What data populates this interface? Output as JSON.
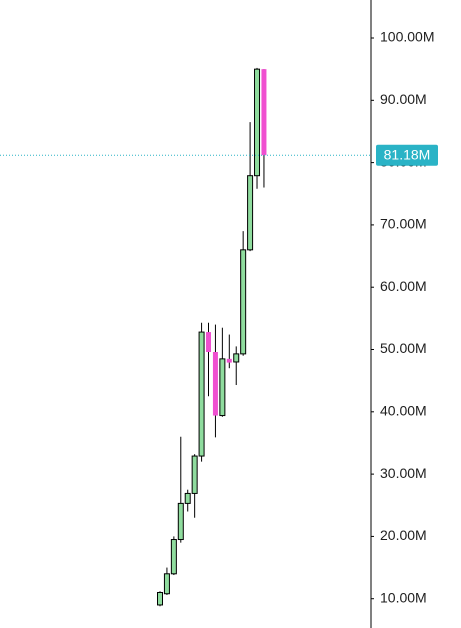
{
  "chart_data": {
    "type": "candlestick",
    "categories": [
      null,
      null,
      null,
      null,
      null,
      null,
      null,
      null,
      null,
      null,
      null,
      null,
      null,
      null,
      null,
      null
    ],
    "open": [
      9.0,
      10.8,
      14.0,
      19.5,
      25.3,
      26.9,
      32.9,
      52.8,
      49.6,
      39.4,
      48.5,
      48.0,
      49.3,
      66.0,
      77.9,
      95.0
    ],
    "high": [
      11.2,
      15.0,
      20.0,
      36.0,
      27.5,
      33.2,
      54.3,
      54.3,
      54.0,
      53.5,
      52.4,
      50.5,
      69.0,
      86.5,
      95.2,
      95.0
    ],
    "low": [
      8.8,
      10.6,
      13.8,
      19.0,
      24.0,
      23.0,
      32.0,
      42.5,
      35.9,
      39.2,
      47.0,
      44.3,
      49.0,
      65.8,
      75.8,
      76.0
    ],
    "close": [
      11.0,
      14.0,
      19.5,
      25.3,
      26.9,
      32.9,
      52.8,
      49.6,
      39.4,
      48.5,
      47.9,
      49.3,
      66.0,
      77.9,
      95.0,
      81.18
    ],
    "up_color": "#8fdc9e",
    "down_color": "#ef4fd0",
    "ylim": [
      5.3,
      106.1
    ],
    "yticks": [
      {
        "value": 10,
        "label": "10.00M"
      },
      {
        "value": 20,
        "label": "20.00M"
      },
      {
        "value": 30,
        "label": "30.00M"
      },
      {
        "value": 40,
        "label": "40.00M"
      },
      {
        "value": 50,
        "label": "50.00M"
      },
      {
        "value": 60,
        "label": "60.00M"
      },
      {
        "value": 70,
        "label": "70.00M"
      },
      {
        "value": 80,
        "label": "80.00M"
      },
      {
        "value": 90,
        "label": "90.00M"
      },
      {
        "value": 100,
        "label": "100.00M"
      }
    ],
    "last_price": {
      "value": 81.18,
      "label": "81.18M",
      "color": "#2ab3c6"
    }
  }
}
